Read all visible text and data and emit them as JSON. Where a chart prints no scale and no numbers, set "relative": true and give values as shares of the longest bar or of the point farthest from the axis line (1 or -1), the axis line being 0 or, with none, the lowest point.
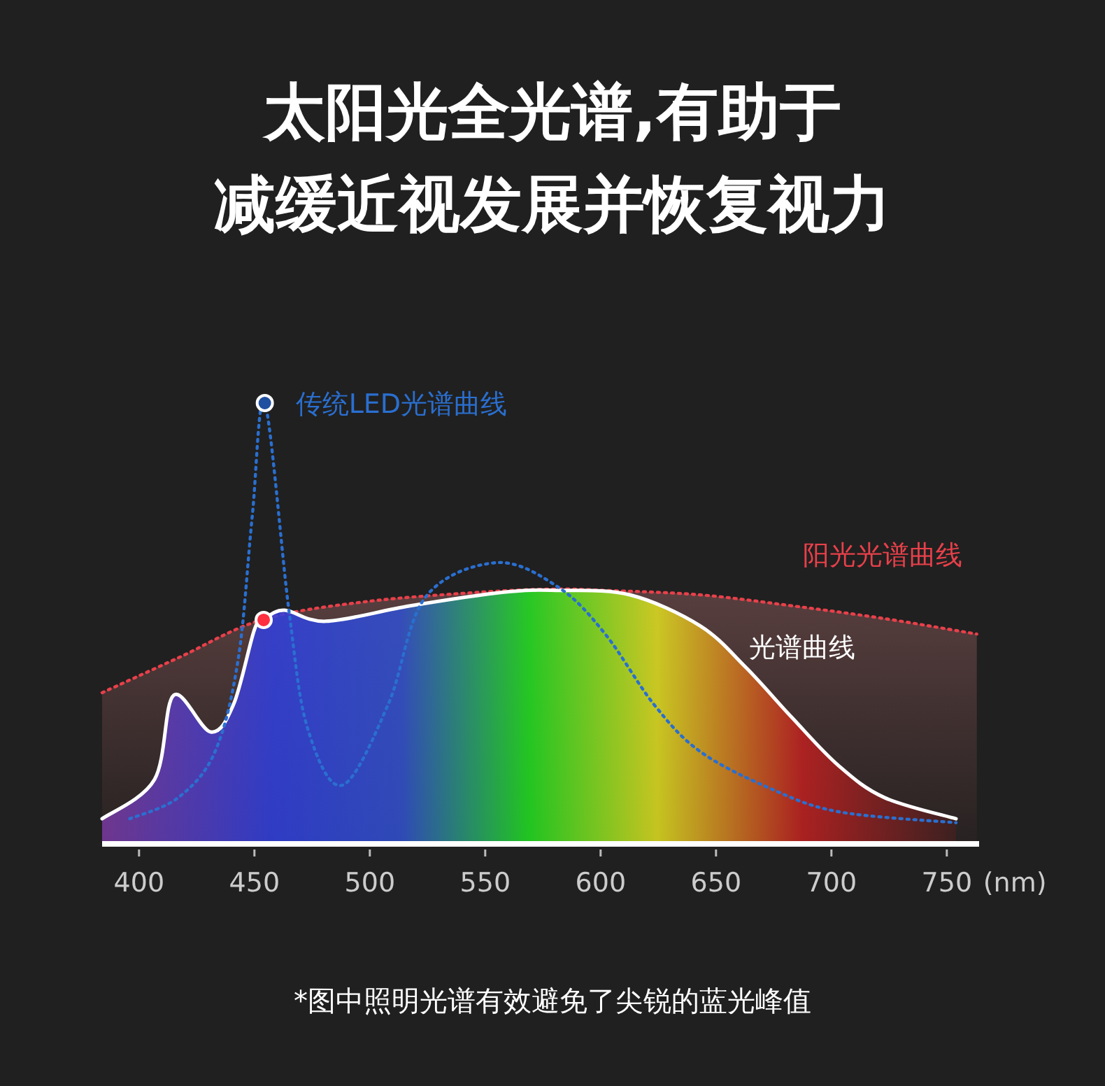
{
  "chart_data": {
    "type": "line",
    "title": "太阳光全光谱,有助于",
    "subtitle": "减缓近视发展并恢复视力",
    "xlabel": "(nm)",
    "relative": true,
    "xlim": [
      384,
      764
    ],
    "xticks": [
      400,
      450,
      500,
      550,
      600,
      650,
      700,
      750
    ],
    "series": [
      {
        "name": "阳光光谱曲线",
        "type": "area",
        "color": "#e8404a",
        "line_style": "dotted",
        "x": [
          384,
          417,
          453,
          497.5,
          548,
          580,
          602,
          643,
          683,
          723,
          763
        ],
        "values": [
          0.343,
          0.422,
          0.508,
          0.549,
          0.571,
          0.578,
          0.575,
          0.565,
          0.54,
          0.511,
          0.476
        ]
      },
      {
        "name": "光谱曲线",
        "type": "area",
        "color": "#ffffff",
        "line_style": "solid",
        "x": [
          384,
          406.7,
          415,
          431,
          441,
          450,
          454,
          463,
          481,
          517.5,
          558,
          582,
          612.6,
          643,
          663,
          683,
          703,
          723,
          754
        ],
        "values": [
          0.057,
          0.146,
          0.337,
          0.254,
          0.317,
          0.486,
          0.508,
          0.53,
          0.505,
          0.54,
          0.571,
          0.575,
          0.565,
          0.495,
          0.4,
          0.286,
          0.178,
          0.105,
          0.057
        ]
      },
      {
        "name": "传统LED光谱曲线",
        "color": "#2a6fd0",
        "line_style": "dotted",
        "x": [
          396,
          417,
          433,
          443,
          449,
          454.5,
          465,
          473,
          488,
          508,
          524,
          555,
          582,
          602,
          623,
          643,
          673,
          703,
          754
        ],
        "values": [
          0.057,
          0.105,
          0.21,
          0.42,
          0.74,
          1.0,
          0.527,
          0.263,
          0.133,
          0.317,
          0.559,
          0.638,
          0.581,
          0.476,
          0.317,
          0.21,
          0.127,
          0.073,
          0.048
        ]
      },
      {
        "type": "scatter",
        "color": "#1f4fa0",
        "x": [
          454.5
        ],
        "values": [
          1.0
        ]
      },
      {
        "type": "scatter",
        "color": "#ff3040",
        "x": [
          454
        ],
        "values": [
          0.508
        ]
      }
    ],
    "annotations": [
      "*图中照明光谱有效避免了尖锐的蓝光峰值"
    ]
  }
}
